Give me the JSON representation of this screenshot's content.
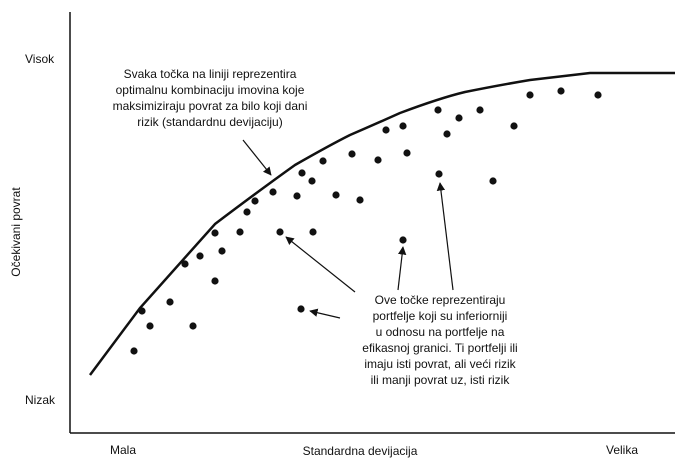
{
  "axes": {
    "y_title": "Očekivani povrat",
    "y_high": "Visok",
    "y_low": "Nizak",
    "x_title": "Standardna devijacija",
    "x_low": "Mala",
    "x_high": "Velika"
  },
  "annotations": {
    "frontier": [
      "Svaka točka na liniji reprezentira",
      "optimalnu kombinaciju imovina koje",
      "maksimiziraju povrat za bilo koji dani",
      "rizik (standardnu devijaciju)"
    ],
    "inferior": [
      "Ove točke reprezentiraju",
      "portfelje koji su inferiorniji",
      "u odnosu na portfelje na",
      "efikasnoj granici. Ti portfelji ili",
      "imaju isti povrat, ali veći rizik",
      "ili manji povrat uz, isti rizik"
    ]
  }
}
